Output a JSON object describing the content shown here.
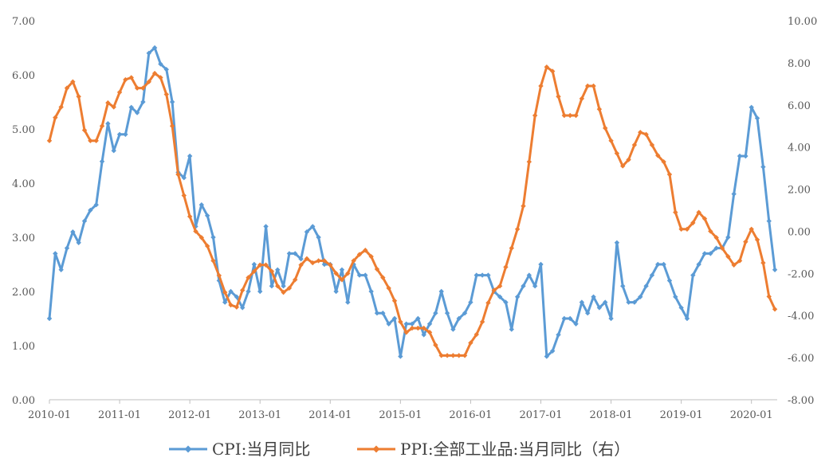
{
  "chart_data": {
    "type": "line",
    "title": "",
    "xlabel": "",
    "ylabel": "",
    "ylim": [
      0,
      7
    ],
    "y2lim": [
      -8,
      10
    ],
    "yticks": [
      "0.00",
      "1.00",
      "2.00",
      "3.00",
      "4.00",
      "5.00",
      "6.00",
      "7.00"
    ],
    "y2ticks": [
      "-8.00",
      "-6.00",
      "-4.00",
      "-2.00",
      "0.00",
      "2.00",
      "4.00",
      "6.00",
      "8.00",
      "10.00"
    ],
    "xticks": [
      "2010-01",
      "2011-01",
      "2012-01",
      "2013-01",
      "2014-01",
      "2015-01",
      "2016-01",
      "2017-01",
      "2018-01",
      "2019-01",
      "2020-01"
    ],
    "start_month": "2010-01",
    "grid": false,
    "legend": "bottom",
    "series": [
      {
        "name": "CPI:当月同比",
        "axis": "left",
        "color": "#5b9bd5",
        "values": [
          1.5,
          2.7,
          2.4,
          2.8,
          3.1,
          2.9,
          3.3,
          3.5,
          3.6,
          4.4,
          5.1,
          4.6,
          4.9,
          4.9,
          5.4,
          5.3,
          5.5,
          6.4,
          6.5,
          6.2,
          6.1,
          5.5,
          4.2,
          4.1,
          4.5,
          3.2,
          3.6,
          3.4,
          3.0,
          2.2,
          1.8,
          2.0,
          1.9,
          1.7,
          2.0,
          2.5,
          2.0,
          3.2,
          2.1,
          2.4,
          2.1,
          2.7,
          2.7,
          2.6,
          3.1,
          3.2,
          3.0,
          2.5,
          2.5,
          2.0,
          2.4,
          1.8,
          2.5,
          2.3,
          2.3,
          2.0,
          1.6,
          1.6,
          1.4,
          1.5,
          0.8,
          1.4,
          1.4,
          1.5,
          1.2,
          1.4,
          1.6,
          2.0,
          1.6,
          1.3,
          1.5,
          1.6,
          1.8,
          2.3,
          2.3,
          2.3,
          2.0,
          1.9,
          1.8,
          1.3,
          1.9,
          2.1,
          2.3,
          2.1,
          2.5,
          0.8,
          0.9,
          1.2,
          1.5,
          1.5,
          1.4,
          1.8,
          1.6,
          1.9,
          1.7,
          1.8,
          1.5,
          2.9,
          2.1,
          1.8,
          1.8,
          1.9,
          2.1,
          2.3,
          2.5,
          2.5,
          2.2,
          1.9,
          1.7,
          1.5,
          2.3,
          2.5,
          2.7,
          2.7,
          2.8,
          2.8,
          3.0,
          3.8,
          4.5,
          4.5,
          5.4,
          5.2,
          4.3,
          3.3,
          2.4
        ]
      },
      {
        "name": "PPI:全部工业品:当月同比（右）",
        "axis": "right",
        "color": "#ed7d31",
        "values": [
          4.3,
          5.4,
          5.9,
          6.8,
          7.1,
          6.4,
          4.8,
          4.3,
          4.3,
          5.0,
          6.1,
          5.9,
          6.6,
          7.2,
          7.3,
          6.8,
          6.8,
          7.1,
          7.5,
          7.3,
          6.5,
          5.0,
          2.7,
          1.7,
          0.7,
          0.0,
          -0.3,
          -0.7,
          -1.4,
          -2.1,
          -2.9,
          -3.5,
          -3.6,
          -2.8,
          -2.2,
          -1.9,
          -1.6,
          -1.6,
          -1.9,
          -2.6,
          -2.9,
          -2.7,
          -2.3,
          -1.6,
          -1.3,
          -1.5,
          -1.4,
          -1.4,
          -1.6,
          -2.0,
          -2.3,
          -2.0,
          -1.4,
          -1.1,
          -0.9,
          -1.2,
          -1.8,
          -2.2,
          -2.7,
          -3.3,
          -4.3,
          -4.8,
          -4.6,
          -4.6,
          -4.6,
          -4.8,
          -5.4,
          -5.9,
          -5.9,
          -5.9,
          -5.9,
          -5.9,
          -5.3,
          -4.9,
          -4.3,
          -3.4,
          -2.8,
          -2.6,
          -1.7,
          -0.8,
          0.1,
          1.2,
          3.3,
          5.5,
          6.9,
          7.8,
          7.6,
          6.4,
          5.5,
          5.5,
          5.5,
          6.3,
          6.9,
          6.9,
          5.8,
          4.9,
          4.3,
          3.7,
          3.1,
          3.4,
          4.1,
          4.7,
          4.6,
          4.1,
          3.6,
          3.3,
          2.7,
          0.9,
          0.1,
          0.1,
          0.4,
          0.9,
          0.6,
          0.0,
          -0.3,
          -0.8,
          -1.2,
          -1.6,
          -1.4,
          -0.5,
          0.1,
          -0.4,
          -1.5,
          -3.1,
          -3.7
        ]
      }
    ]
  }
}
